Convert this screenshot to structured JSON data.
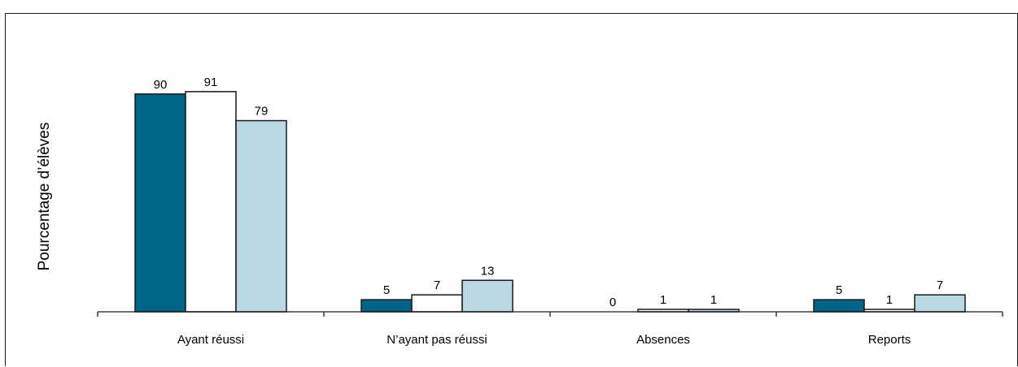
{
  "chart_data": {
    "type": "bar",
    "title": "",
    "xlabel": "",
    "ylabel": "Pourcentage d’élèves",
    "categories": [
      "Ayant réussi",
      "N’ayant pas réussi",
      "Absences",
      "Reports"
    ],
    "series": [
      {
        "color": "#006487",
        "values": [
          90,
          5,
          0,
          5
        ]
      },
      {
        "color": "#ffffff",
        "values": [
          91,
          7,
          1,
          1
        ]
      },
      {
        "color": "#b9d8e4",
        "values": [
          79,
          13,
          1,
          7
        ]
      }
    ],
    "ylim": [
      0,
      100
    ],
    "grid": false,
    "legend": "none"
  }
}
